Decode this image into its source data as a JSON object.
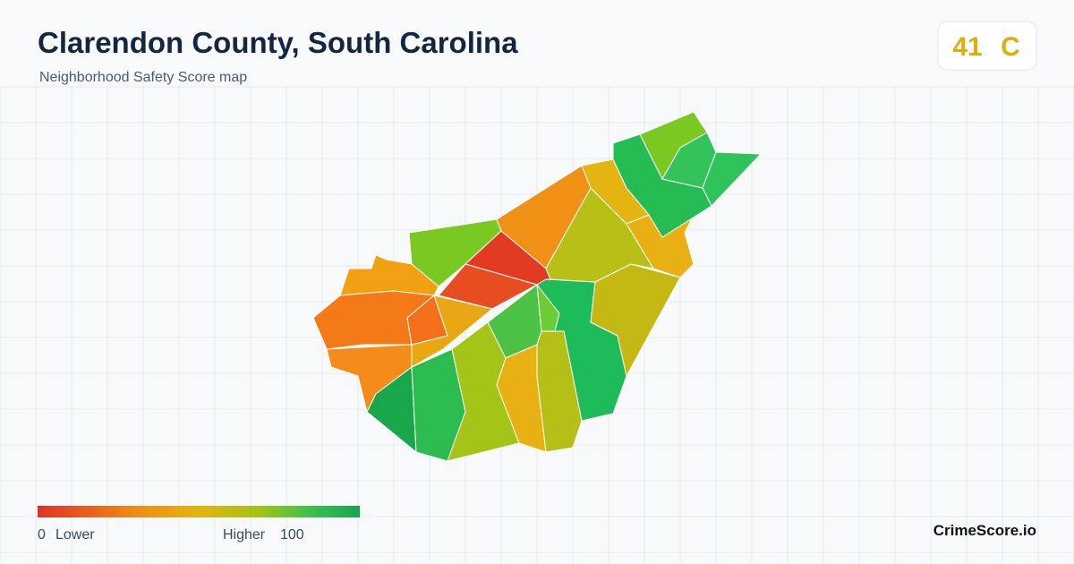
{
  "header": {
    "title": "Clarendon County, South Carolina",
    "subtitle": "Neighborhood Safety Score map"
  },
  "score": {
    "value": 41,
    "grade": "C"
  },
  "legend": {
    "min": 0,
    "low_label": "Lower",
    "high_label": "Higher",
    "max": 100
  },
  "brand": "CrimeScore.io"
}
